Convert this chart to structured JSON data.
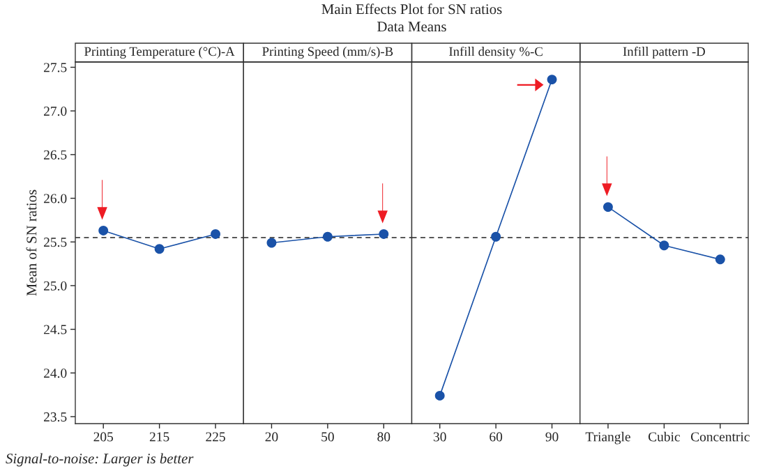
{
  "chart_data": [
    {
      "type": "line",
      "title": "Printing Temperature (°C)-A",
      "ylabel": "Mean of SN ratios",
      "categories": [
        "205",
        "215",
        "225"
      ],
      "series": [
        {
          "color": "#1a52a8",
          "values": [
            25.63,
            25.42,
            25.59
          ]
        }
      ],
      "ylim": [
        23.42,
        27.56
      ],
      "yticks": [
        {
          "value": 23.5,
          "label": "23.5"
        },
        {
          "value": 24.0,
          "label": "24.0"
        },
        {
          "value": 24.5,
          "label": "24.5"
        },
        {
          "value": 25.0,
          "label": "25.0"
        },
        {
          "value": 25.5,
          "label": "25.5"
        },
        {
          "value": 26.0,
          "label": "26.0"
        },
        {
          "value": 26.5,
          "label": "26.5"
        },
        {
          "value": 27.0,
          "label": "27.0"
        },
        {
          "value": 27.5,
          "label": "27.5"
        }
      ],
      "ref_lines": [
        {
          "axis": "y",
          "value": 25.55,
          "line_style": "dashed",
          "color": "#222222"
        }
      ],
      "marker": "circle",
      "grid": false,
      "legend": false,
      "annotations": [
        "Main Effects Plot for SN ratios",
        "Data Means",
        "Signal-to-noise: Larger is better"
      ]
    },
    {
      "type": "line",
      "title": "Printing Speed (mm/s)-B",
      "categories": [
        "20",
        "50",
        "80"
      ],
      "series": [
        {
          "color": "#1a52a8",
          "values": [
            25.49,
            25.56,
            25.59
          ]
        }
      ],
      "ylim": [
        23.42,
        27.56
      ],
      "tick_labels": "x",
      "ref_lines": [
        {
          "axis": "y",
          "value": 25.55,
          "line_style": "dashed",
          "color": "#222222"
        }
      ],
      "marker": "circle",
      "grid": false,
      "legend": false
    },
    {
      "type": "line",
      "title": "Infill density %-C",
      "categories": [
        "30",
        "60",
        "90"
      ],
      "series": [
        {
          "color": "#1a52a8",
          "values": [
            23.74,
            25.56,
            27.36
          ]
        }
      ],
      "ylim": [
        23.42,
        27.56
      ],
      "tick_labels": "x",
      "ref_lines": [
        {
          "axis": "y",
          "value": 25.55,
          "line_style": "dashed",
          "color": "#222222"
        }
      ],
      "marker": "circle",
      "grid": false,
      "legend": false
    },
    {
      "type": "line",
      "title": "Infill pattern -D",
      "categories": [
        "Triangle",
        "Cubic",
        "Concentric"
      ],
      "series": [
        {
          "color": "#1a52a8",
          "values": [
            25.9,
            25.46,
            25.3
          ]
        }
      ],
      "ylim": [
        23.42,
        27.56
      ],
      "tick_labels": "x",
      "ref_lines": [
        {
          "axis": "y",
          "value": 25.55,
          "line_style": "dashed",
          "color": "#222222"
        }
      ],
      "marker": "circle",
      "grid": false,
      "legend": false
    }
  ]
}
